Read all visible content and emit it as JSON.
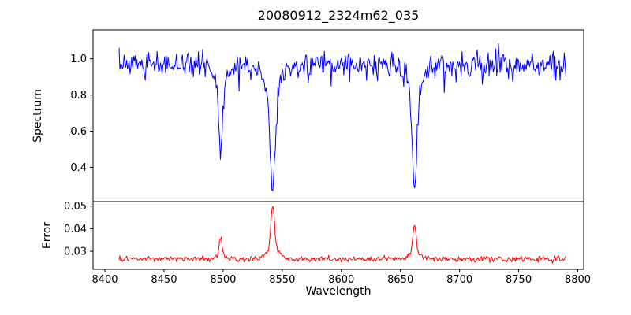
{
  "chart": {
    "title": "20080912_2324m62_035",
    "xlabel": "Wavelength",
    "xlim": [
      8390,
      8805
    ],
    "xticks": [
      8400,
      8450,
      8500,
      8550,
      8600,
      8650,
      8700,
      8750,
      8800
    ],
    "xtick_labels": [
      "8400",
      "8450",
      "8500",
      "8550",
      "8600",
      "8650",
      "8700",
      "8750",
      "8800"
    ],
    "frame_color": "#000000"
  },
  "chart_data": [
    {
      "type": "line",
      "name": "spectrum",
      "ylabel": "Spectrum",
      "color": "#0000ff",
      "ylim": [
        0.21,
        1.16
      ],
      "yticks": [
        0.4,
        0.6,
        0.8,
        1.0
      ],
      "ytick_labels": [
        "0.4",
        "0.6",
        "0.8",
        "1.0"
      ],
      "x_start": 8412,
      "x_end": 8790,
      "n_points": 530,
      "baseline": 0.97,
      "noise_std": 0.033,
      "absorption_lines": [
        {
          "center": 8498,
          "depth": 0.46,
          "sigma": 1.7
        },
        {
          "center": 8542,
          "depth": 0.65,
          "sigma": 2.3
        },
        {
          "center": 8662,
          "depth": 0.67,
          "sigma": 2.0
        }
      ]
    },
    {
      "type": "line",
      "name": "error",
      "ylabel": "Error",
      "color": "#ff0000",
      "ylim": [
        0.022,
        0.052
      ],
      "yticks": [
        0.03,
        0.04,
        0.05
      ],
      "ytick_labels": [
        "0.03",
        "0.04",
        "0.05"
      ],
      "x_start": 8412,
      "x_end": 8790,
      "n_points": 530,
      "baseline": 0.0265,
      "noise_std": 0.0006,
      "peaks": [
        {
          "center": 8498,
          "height": 0.0085,
          "sigma": 1.3
        },
        {
          "center": 8542,
          "height": 0.023,
          "sigma": 1.5
        },
        {
          "center": 8662,
          "height": 0.0145,
          "sigma": 1.4
        }
      ]
    }
  ]
}
